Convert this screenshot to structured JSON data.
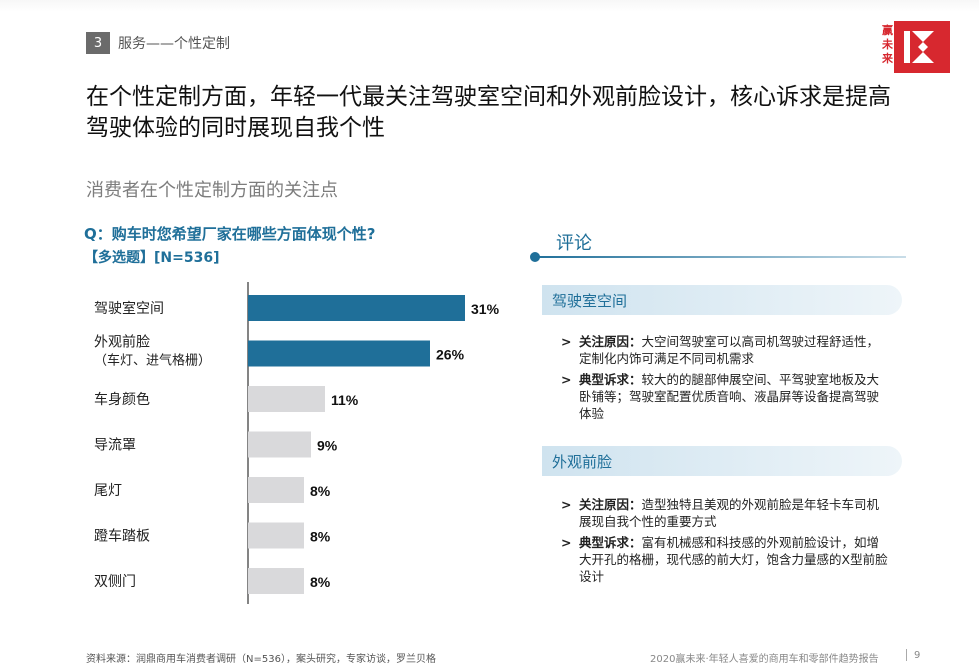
{
  "section": {
    "number": "3",
    "name": "服务——个性定制"
  },
  "brand": {
    "logo_text": "赢未来",
    "accent_color": "#d7282f"
  },
  "title": "在个性定制方面，年轻一代最关注驾驶室空间和外观前脸设计，核心诉求是提高驾驶体验的同时展现自我个性",
  "subtitle": "消费者在个性定制方面的关注点",
  "question": "Q：购车时您希望厂家在哪些方面体现个性?",
  "question_note": "【多选题】[N=536]",
  "chart_data": {
    "type": "bar",
    "orientation": "horizontal",
    "categories": [
      "驾驶室空间",
      "外观前脸\n（车灯、进气格栅）",
      "车身颜色",
      "导流罩",
      "尾灯",
      "蹬车踏板",
      "双侧门"
    ],
    "values": [
      31,
      26,
      11,
      9,
      8,
      8,
      8
    ],
    "value_labels": [
      "31%",
      "26%",
      "11%",
      "9%",
      "8%",
      "8%",
      "8%"
    ],
    "highlight_color": "#1f6f99",
    "base_color": "#d9d9db",
    "highlighted": [
      true,
      true,
      false,
      false,
      false,
      false,
      false
    ]
  },
  "comments": {
    "heading": "评论",
    "blocks": [
      {
        "title": "驾驶室空间",
        "items": [
          {
            "key": "关注原因：",
            "text": "大空间驾驶室可以高司机驾驶过程舒适性，定制化内饰可满足不同司机需求"
          },
          {
            "key": "典型诉求：",
            "text": "较大的的腿部伸展空间、平驾驶室地板及大卧铺等；驾驶室配置优质音响、液晶屏等设备提高驾驶体验"
          }
        ]
      },
      {
        "title": "外观前脸",
        "items": [
          {
            "key": "关注原因：",
            "text": "造型独特且美观的外观前脸是年轻卡车司机展现自我个性的重要方式"
          },
          {
            "key": "典型诉求：",
            "text": "富有机械感和科技感的外观前脸设计，如增大开孔的格栅，现代感的前大灯，饱含力量感的X型前脸设计"
          }
        ]
      }
    ]
  },
  "footer": {
    "source": "资料来源：润鼎商用车消费者调研（N=536），案头研究，专家访谈，罗兰贝格",
    "report": "2020赢未来·年轻人喜爱的商用车和零部件趋势报告",
    "page": "9"
  }
}
